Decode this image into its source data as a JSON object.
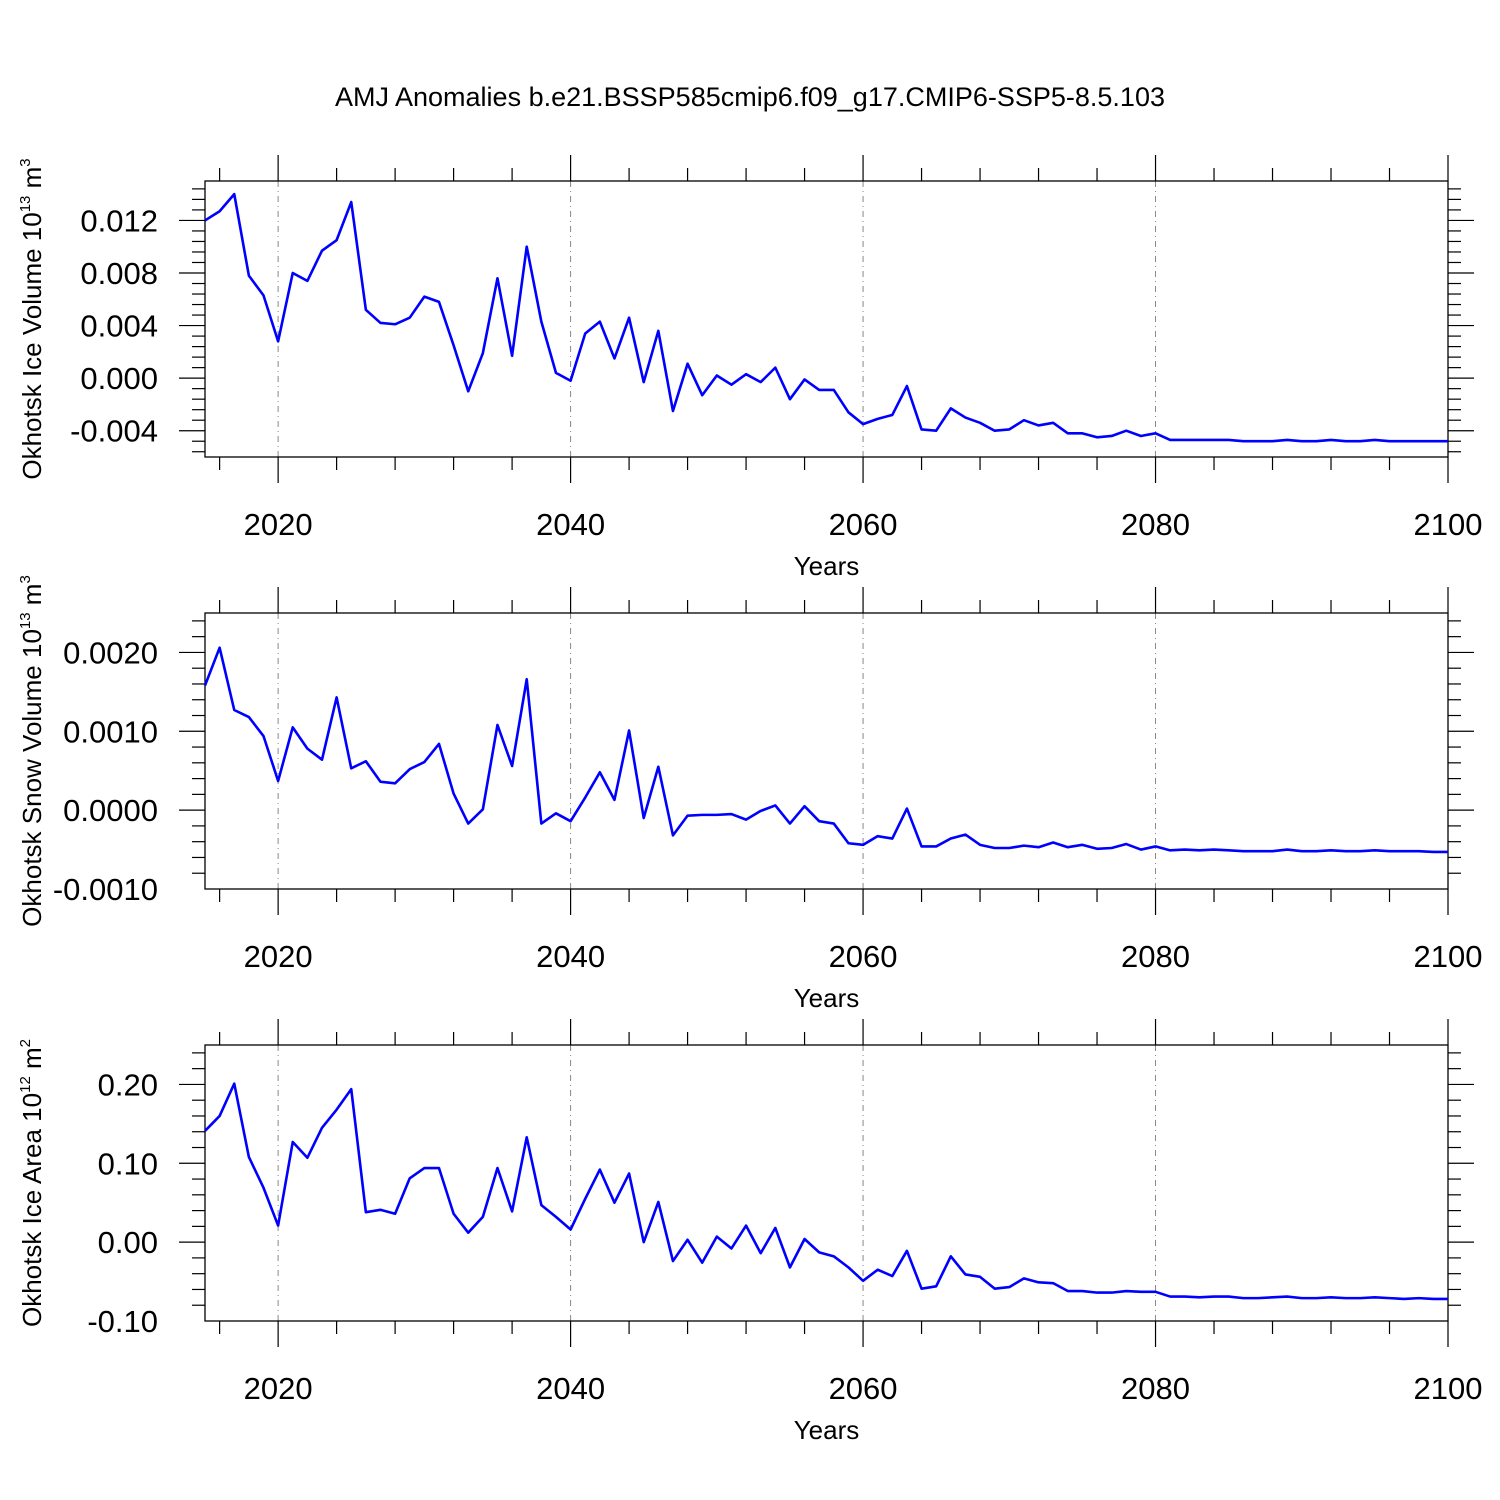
{
  "title": "AMJ Anomalies b.e21.BSSP585cmip6.f09_g17.CMIP6-SSP5-8.5.103",
  "line_color": "#0000ff",
  "grid_color": "#888888",
  "chart_data": [
    {
      "type": "line",
      "title": "",
      "xlabel": "Years",
      "ylabel": "Okhotsk Ice Volume 10",
      "ylabel_exp": "13",
      "ylabel_unit": " m",
      "ylabel_unit_exp": "3",
      "xlim": [
        2015,
        2100
      ],
      "ylim": [
        -0.006,
        0.015
      ],
      "xticks": [
        2020,
        2040,
        2060,
        2080,
        2100
      ],
      "xtick_labels": [
        "2020",
        "2040",
        "2060",
        "2080",
        "2100"
      ],
      "yticks": [
        -0.004,
        0.0,
        0.004,
        0.008,
        0.012
      ],
      "ytick_labels": [
        "-0.004",
        "0.000",
        "0.004",
        "0.008",
        "0.012"
      ],
      "grid": "vertical dashed at major x ticks",
      "series": [
        {
          "x": [
            2015,
            2016,
            2017,
            2018,
            2019,
            2020,
            2021,
            2022,
            2023,
            2024,
            2025,
            2026,
            2027,
            2028,
            2029,
            2030,
            2031,
            2032,
            2033,
            2034,
            2035,
            2036,
            2037,
            2038,
            2039,
            2040,
            2041,
            2042,
            2043,
            2044,
            2045,
            2046,
            2047,
            2048,
            2049,
            2050,
            2051,
            2052,
            2053,
            2054,
            2055,
            2056,
            2057,
            2058,
            2059,
            2060,
            2061,
            2062,
            2063,
            2064,
            2065,
            2066,
            2067,
            2068,
            2069,
            2070,
            2071,
            2072,
            2073,
            2074,
            2075,
            2076,
            2077,
            2078,
            2079,
            2080,
            2081,
            2082,
            2083,
            2084,
            2085,
            2086,
            2087,
            2088,
            2089,
            2090,
            2091,
            2092,
            2093,
            2094,
            2095,
            2096,
            2097,
            2098,
            2099,
            2100
          ],
          "values": [
            0.012,
            0.0127,
            0.014,
            0.0078,
            0.0063,
            0.0028,
            0.008,
            0.0074,
            0.0097,
            0.0105,
            0.0134,
            0.0052,
            0.0042,
            0.0041,
            0.0046,
            0.0062,
            0.0058,
            0.0025,
            -0.001,
            0.0019,
            0.0076,
            0.0017,
            0.01,
            0.0043,
            0.0004,
            -0.0002,
            0.0034,
            0.0043,
            0.0015,
            0.0046,
            -0.0003,
            0.0036,
            -0.0025,
            0.0011,
            -0.0013,
            0.0002,
            -0.0005,
            0.0003,
            -0.0003,
            0.0008,
            -0.0016,
            -0.0001,
            -0.0009,
            -0.0009,
            -0.0026,
            -0.0035,
            -0.0031,
            -0.0028,
            -0.0006,
            -0.0039,
            -0.004,
            -0.0023,
            -0.003,
            -0.0034,
            -0.004,
            -0.0039,
            -0.0032,
            -0.0036,
            -0.0034,
            -0.0042,
            -0.0042,
            -0.0045,
            -0.0044,
            -0.004,
            -0.0044,
            -0.0042,
            -0.0047,
            -0.0047,
            -0.0047,
            -0.0047,
            -0.0047,
            -0.0048,
            -0.0048,
            -0.0048,
            -0.0047,
            -0.0048,
            -0.0048,
            -0.0047,
            -0.0048,
            -0.0048,
            -0.0047,
            -0.0048,
            -0.0048,
            -0.0048,
            -0.0048,
            -0.0048
          ]
        }
      ]
    },
    {
      "type": "line",
      "title": "",
      "xlabel": "Years",
      "ylabel": "Okhotsk Snow Volume 10",
      "ylabel_exp": "13",
      "ylabel_unit": " m",
      "ylabel_unit_exp": "3",
      "xlim": [
        2015,
        2100
      ],
      "ylim": [
        -0.001,
        0.0025
      ],
      "xticks": [
        2020,
        2040,
        2060,
        2080,
        2100
      ],
      "xtick_labels": [
        "2020",
        "2040",
        "2060",
        "2080",
        "2100"
      ],
      "yticks": [
        -0.001,
        0.0,
        0.001,
        0.002
      ],
      "ytick_labels": [
        "-0.0010",
        "0.0000",
        "0.0010",
        "0.0020"
      ],
      "grid": "vertical dashed at major x ticks",
      "series": [
        {
          "x": [
            2015,
            2016,
            2017,
            2018,
            2019,
            2020,
            2021,
            2022,
            2023,
            2024,
            2025,
            2026,
            2027,
            2028,
            2029,
            2030,
            2031,
            2032,
            2033,
            2034,
            2035,
            2036,
            2037,
            2038,
            2039,
            2040,
            2041,
            2042,
            2043,
            2044,
            2045,
            2046,
            2047,
            2048,
            2049,
            2050,
            2051,
            2052,
            2053,
            2054,
            2055,
            2056,
            2057,
            2058,
            2059,
            2060,
            2061,
            2062,
            2063,
            2064,
            2065,
            2066,
            2067,
            2068,
            2069,
            2070,
            2071,
            2072,
            2073,
            2074,
            2075,
            2076,
            2077,
            2078,
            2079,
            2080,
            2081,
            2082,
            2083,
            2084,
            2085,
            2086,
            2087,
            2088,
            2089,
            2090,
            2091,
            2092,
            2093,
            2094,
            2095,
            2096,
            2097,
            2098,
            2099,
            2100
          ],
          "values": [
            0.00158,
            0.00206,
            0.00127,
            0.00118,
            0.00094,
            0.00037,
            0.00105,
            0.00078,
            0.00064,
            0.00143,
            0.00053,
            0.00062,
            0.00036,
            0.00034,
            0.00052,
            0.00061,
            0.00084,
            0.00021,
            -0.00017,
            1e-05,
            0.00108,
            0.00056,
            0.00166,
            -0.00017,
            -4e-05,
            -0.00014,
            0.00016,
            0.00048,
            0.00013,
            0.00101,
            -0.0001,
            0.00055,
            -0.00032,
            -7e-05,
            -6e-05,
            -6e-05,
            -5e-05,
            -0.00012,
            -1e-05,
            6e-05,
            -0.00017,
            5e-05,
            -0.00014,
            -0.00017,
            -0.00042,
            -0.00044,
            -0.00033,
            -0.00036,
            2e-05,
            -0.00046,
            -0.00046,
            -0.00036,
            -0.00031,
            -0.00044,
            -0.00048,
            -0.00048,
            -0.00045,
            -0.00047,
            -0.00041,
            -0.00047,
            -0.00044,
            -0.00049,
            -0.00048,
            -0.00043,
            -0.0005,
            -0.00046,
            -0.00051,
            -0.0005,
            -0.00051,
            -0.0005,
            -0.00051,
            -0.00052,
            -0.00052,
            -0.00052,
            -0.0005,
            -0.00052,
            -0.00052,
            -0.00051,
            -0.00052,
            -0.00052,
            -0.00051,
            -0.00052,
            -0.00052,
            -0.00052,
            -0.00053,
            -0.00053
          ]
        }
      ]
    },
    {
      "type": "line",
      "title": "",
      "xlabel": "Years",
      "ylabel": "Okhotsk Ice Area 10",
      "ylabel_exp": "12",
      "ylabel_unit": " m",
      "ylabel_unit_exp": "2",
      "xlim": [
        2015,
        2100
      ],
      "ylim": [
        -0.1,
        0.25
      ],
      "xticks": [
        2020,
        2040,
        2060,
        2080,
        2100
      ],
      "xtick_labels": [
        "2020",
        "2040",
        "2060",
        "2080",
        "2100"
      ],
      "yticks": [
        -0.1,
        0.0,
        0.1,
        0.2
      ],
      "ytick_labels": [
        "-0.10",
        "0.00",
        "0.10",
        "0.20"
      ],
      "grid": "vertical dashed at major x ticks",
      "series": [
        {
          "x": [
            2015,
            2016,
            2017,
            2018,
            2019,
            2020,
            2021,
            2022,
            2023,
            2024,
            2025,
            2026,
            2027,
            2028,
            2029,
            2030,
            2031,
            2032,
            2033,
            2034,
            2035,
            2036,
            2037,
            2038,
            2039,
            2040,
            2041,
            2042,
            2043,
            2044,
            2045,
            2046,
            2047,
            2048,
            2049,
            2050,
            2051,
            2052,
            2053,
            2054,
            2055,
            2056,
            2057,
            2058,
            2059,
            2060,
            2061,
            2062,
            2063,
            2064,
            2065,
            2066,
            2067,
            2068,
            2069,
            2070,
            2071,
            2072,
            2073,
            2074,
            2075,
            2076,
            2077,
            2078,
            2079,
            2080,
            2081,
            2082,
            2083,
            2084,
            2085,
            2086,
            2087,
            2088,
            2089,
            2090,
            2091,
            2092,
            2093,
            2094,
            2095,
            2096,
            2097,
            2098,
            2099,
            2100
          ],
          "values": [
            0.141,
            0.16,
            0.201,
            0.108,
            0.069,
            0.021,
            0.127,
            0.107,
            0.145,
            0.168,
            0.194,
            0.038,
            0.041,
            0.036,
            0.081,
            0.094,
            0.094,
            0.036,
            0.012,
            0.032,
            0.094,
            0.039,
            0.133,
            0.047,
            0.032,
            0.016,
            0.055,
            0.092,
            0.05,
            0.087,
            0.0,
            0.051,
            -0.024,
            0.003,
            -0.026,
            0.007,
            -0.008,
            0.021,
            -0.014,
            0.018,
            -0.032,
            0.004,
            -0.013,
            -0.018,
            -0.032,
            -0.049,
            -0.035,
            -0.043,
            -0.011,
            -0.059,
            -0.056,
            -0.018,
            -0.041,
            -0.044,
            -0.059,
            -0.057,
            -0.046,
            -0.051,
            -0.052,
            -0.062,
            -0.062,
            -0.064,
            -0.064,
            -0.062,
            -0.063,
            -0.063,
            -0.069,
            -0.069,
            -0.07,
            -0.069,
            -0.069,
            -0.071,
            -0.071,
            -0.07,
            -0.069,
            -0.071,
            -0.071,
            -0.07,
            -0.071,
            -0.071,
            -0.07,
            -0.071,
            -0.072,
            -0.071,
            -0.072,
            -0.072
          ]
        }
      ]
    }
  ]
}
